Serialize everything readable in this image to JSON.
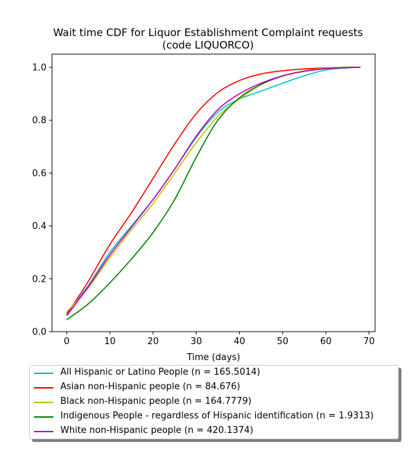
{
  "chart_data": {
    "type": "line",
    "title": "Wait time CDF for Liquor Establishment Complaint  requests",
    "subtitle": "(code LIQUORCO)",
    "xlabel": "Time (days)",
    "ylabel": "",
    "xlim": [
      -3.4,
      71.4
    ],
    "ylim": [
      0.0,
      1.05
    ],
    "xticks": [
      0,
      10,
      20,
      30,
      40,
      50,
      60,
      70
    ],
    "yticks": [
      0.0,
      0.2,
      0.4,
      0.6,
      0.8,
      1.0
    ],
    "grid": false,
    "legend_position": "below",
    "x": [
      0,
      5,
      10,
      15,
      20,
      25,
      30,
      35,
      40,
      45,
      50,
      55,
      60,
      65,
      68
    ],
    "series": [
      {
        "name": "All Hispanic or Latino People (n = 165.5014)",
        "color": "#00bfbf",
        "values": [
          0.07,
          0.175,
          0.3,
          0.4,
          0.5,
          0.615,
          0.735,
          0.83,
          0.88,
          0.91,
          0.94,
          0.968,
          0.99,
          0.998,
          1.0
        ]
      },
      {
        "name": "Asian non-Hispanic people (n = 84.676)",
        "color": "#ff0000",
        "values": [
          0.065,
          0.19,
          0.33,
          0.45,
          0.58,
          0.71,
          0.825,
          0.905,
          0.95,
          0.975,
          0.987,
          0.994,
          0.998,
          1.0,
          1.0
        ]
      },
      {
        "name": "Black non-Hispanic people (n = 164.7779)",
        "color": "#bfbf00",
        "values": [
          0.075,
          0.165,
          0.28,
          0.385,
          0.485,
          0.6,
          0.715,
          0.815,
          0.88,
          0.935,
          0.968,
          0.987,
          0.997,
          1.0,
          1.0
        ]
      },
      {
        "name": "Indigenous People - regardless of Hispanic identification (n = 1.9313)",
        "color": "#008000",
        "values": [
          0.045,
          0.105,
          0.185,
          0.275,
          0.375,
          0.5,
          0.66,
          0.8,
          0.885,
          0.935,
          0.967,
          0.985,
          0.995,
          1.0,
          1.0
        ]
      },
      {
        "name": "White non-Hispanic people (n = 420.1374)",
        "color": "#bf00bf",
        "values": [
          0.06,
          0.17,
          0.29,
          0.395,
          0.5,
          0.615,
          0.74,
          0.84,
          0.9,
          0.94,
          0.968,
          0.985,
          0.995,
          0.999,
          1.0
        ]
      }
    ]
  }
}
